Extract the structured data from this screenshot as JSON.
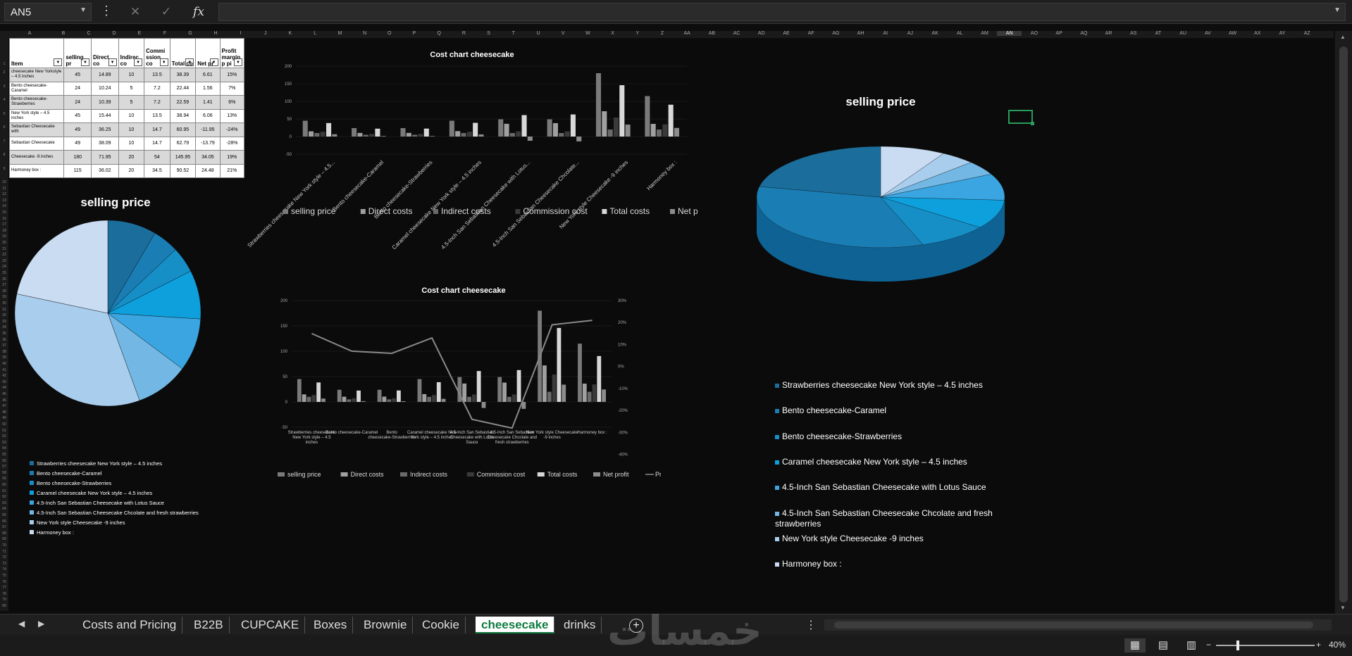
{
  "formula_bar": {
    "name_box": "AN5",
    "cancel_icon": "close-icon",
    "enter_icon": "check-icon",
    "function_label": "fx",
    "formula": ""
  },
  "columns": [
    "A",
    "B",
    "C",
    "D",
    "E",
    "F",
    "G",
    "H",
    "I",
    "J",
    "K",
    "L",
    "M",
    "N",
    "O",
    "P",
    "Q",
    "R",
    "S",
    "T",
    "U",
    "V",
    "W",
    "X",
    "Y",
    "Z",
    "AA",
    "AB",
    "AC",
    "AD",
    "AE",
    "AF",
    "AG",
    "AH",
    "AI",
    "AJ",
    "AK",
    "AL",
    "AM",
    "AN",
    "AO",
    "AP",
    "AQ",
    "AR",
    "AS",
    "AT",
    "AU",
    "AV",
    "AW",
    "AX",
    "AY",
    "AZ"
  ],
  "active_column": "AN",
  "table": {
    "headers": [
      "Item",
      "selling pr",
      "Direct co",
      "Indirec co",
      "Commi ssion co",
      "Total co",
      "Net pr",
      "Profit margin p pi"
    ],
    "rows": [
      [
        "cheesecake New Yorkstyle – 4.5 inches",
        "45",
        "14.89",
        "10",
        "13.5",
        "38.39",
        "6.61",
        "15%"
      ],
      [
        "Bento cheesecake-Caramel",
        "24",
        "10.24",
        "5",
        "7.2",
        "22.44",
        "1.56",
        "7%"
      ],
      [
        "Bento cheesecake-Strawberries",
        "24",
        "10.39",
        "5",
        "7.2",
        "22.59",
        "1.41",
        "6%"
      ],
      [
        "New York style – 4.5 inches",
        "45",
        "15.44",
        "10",
        "13.5",
        "38.94",
        "6.06",
        "13%"
      ],
      [
        "Sebastian Cheesecake with",
        "49",
        "36.25",
        "10",
        "14.7",
        "60.95",
        "-11.95",
        "-24%"
      ],
      [
        "Sebastian Cheesecake",
        "49",
        "38.09",
        "10",
        "14.7",
        "62.79",
        "-13.79",
        "-28%"
      ],
      [
        "Cheesecake -9 inches",
        "180",
        "71.95",
        "20",
        "54",
        "145.95",
        "34.05",
        "19%"
      ],
      [
        "Harmoney box :",
        "115",
        "36.02",
        "20",
        "34.5",
        "90.52",
        "24.48",
        "21%"
      ]
    ]
  },
  "chart_data": [
    {
      "type": "bar",
      "title": "Cost chart cheesecake",
      "categories": [
        "Strawberries cheesecake New York style – 4.5...",
        "Bento cheesecake-Caramel",
        "Bento cheesecake-Strawberries",
        "Caramel cheesecake New York style – 4.5 inches",
        "4.5-Inch San Sebastian Cheesecake with Lotus...",
        "4.5-Inch San Sebastian Cheesecake Chcolate...",
        "New York style Cheesecake -9 inches",
        "Harmoney box :"
      ],
      "ylim": [
        -50,
        200
      ],
      "yticks": [
        "200",
        "150",
        "100",
        "50",
        "0",
        "-50"
      ],
      "series": [
        {
          "name": "selling price",
          "values": [
            45,
            24,
            24,
            45,
            49,
            49,
            180,
            115
          ],
          "color": "#7a7a7a"
        },
        {
          "name": "Direct costs",
          "values": [
            14.89,
            10.24,
            10.39,
            15.44,
            36.25,
            38.09,
            71.95,
            36.02
          ],
          "color": "#a0a0a0"
        },
        {
          "name": "Indirect costs",
          "values": [
            10,
            5,
            5,
            10,
            10,
            10,
            20,
            20
          ],
          "color": "#6a6a6a"
        },
        {
          "name": "Commission cost",
          "values": [
            13.5,
            7.2,
            7.2,
            13.5,
            14.7,
            14.7,
            54,
            34.5
          ],
          "color": "#3a3a3a"
        },
        {
          "name": "Total costs",
          "values": [
            38.39,
            22.44,
            22.59,
            38.94,
            60.95,
            62.79,
            145.95,
            90.52
          ],
          "color": "#d8d8d8"
        },
        {
          "name": "Net profit",
          "values": [
            6.61,
            1.56,
            1.41,
            6.06,
            -11.95,
            -13.79,
            34.05,
            24.48
          ],
          "color": "#8c8c8c"
        }
      ]
    },
    {
      "type": "bar",
      "title": "Cost chart cheesecake",
      "categories": [
        "Strawberries cheesecake New York style – 4.5 inches",
        "Bento cheesecake-Caramel",
        "Bento cheesecake-Strawberries",
        "Caramel cheesecake New York style – 4.5 inches",
        "4.5-Inch San Sebastian Cheesecake with Lotus Sauce",
        "4.5-Inch San Sebastian Cheesecake Chcolate and fresh strawberries",
        "New York style Cheesecake -9 inches",
        "Harmoney box :"
      ],
      "ylim": [
        -50,
        200
      ],
      "yticks": [
        "200",
        "150",
        "100",
        "50",
        "0",
        "-50"
      ],
      "y2ticks": [
        "30%",
        "20%",
        "10%",
        "0%",
        "-10%",
        "-20%",
        "-30%",
        "-40%"
      ],
      "y2lim": [
        -0.4,
        0.3
      ],
      "series": [
        {
          "name": "selling price",
          "values": [
            45,
            24,
            24,
            45,
            49,
            49,
            180,
            115
          ],
          "color": "#7a7a7a"
        },
        {
          "name": "Direct costs",
          "values": [
            14.89,
            10.24,
            10.39,
            15.44,
            36.25,
            38.09,
            71.95,
            36.02
          ],
          "color": "#a0a0a0"
        },
        {
          "name": "Indirect costs",
          "values": [
            10,
            5,
            5,
            10,
            10,
            10,
            20,
            20
          ],
          "color": "#6a6a6a"
        },
        {
          "name": "Commission cost",
          "values": [
            13.5,
            7.2,
            7.2,
            13.5,
            14.7,
            14.7,
            54,
            34.5
          ],
          "color": "#3a3a3a"
        },
        {
          "name": "Total costs",
          "values": [
            38.39,
            22.44,
            22.59,
            38.94,
            60.95,
            62.79,
            145.95,
            90.52
          ],
          "color": "#d8d8d8"
        },
        {
          "name": "Net profit",
          "values": [
            6.61,
            1.56,
            1.41,
            6.06,
            -11.95,
            -13.79,
            34.05,
            24.48
          ],
          "color": "#8c8c8c"
        }
      ],
      "line": {
        "name": "Profit margin per piece",
        "values": [
          0.15,
          0.07,
          0.06,
          0.13,
          -0.24,
          -0.28,
          0.19,
          0.21
        ],
        "color": "#8a8a8a"
      }
    },
    {
      "type": "pie",
      "title": "selling price",
      "labels": [
        "Strawberries cheesecake New York style – 4.5 inches",
        "Bento cheesecake-Caramel",
        "Bento cheesecake-Strawberries",
        "Caramel cheesecake New York style – 4.5 inches",
        "4.5-Inch San Sebastian Cheesecake with Lotus Sauce",
        "4.5-Inch San Sebastian Cheesecake Chcolate and fresh strawberries",
        "New York style Cheesecake  -9 inches",
        "Harmoney box :"
      ],
      "values": [
        45,
        24,
        24,
        45,
        49,
        49,
        180,
        115
      ],
      "colors": [
        "#1b6e9c",
        "#1a7db3",
        "#168fc7",
        "#0ea0dc",
        "#3aa5e0",
        "#73b8e4",
        "#a9cdec",
        "#c9dcf2"
      ]
    },
    {
      "type": "pie",
      "title": "selling price",
      "style": "3d",
      "labels": [
        "Strawberries cheesecake New York style – 4.5 inches",
        "Bento cheesecake-Caramel",
        "Bento cheesecake-Strawberries",
        "Caramel cheesecake New York style – 4.5 inches",
        "4.5-Inch San Sebastian Cheesecake with Lotus Sauce",
        "4.5-Inch San Sebastian Cheesecake Chcolate and fresh strawberries",
        "New York style Cheesecake  -9 inches",
        "Harmoney box :"
      ],
      "values": [
        45,
        24,
        24,
        45,
        49,
        49,
        180,
        115
      ],
      "colors": [
        "#c9dcf2",
        "#a9cdec",
        "#73b8e4",
        "#3aa5e0",
        "#0ea0dc",
        "#168fc7",
        "#1a7db3",
        "#1b6e9c"
      ]
    }
  ],
  "sheet_tabs": [
    "Costs and Pricing",
    "B22B",
    "CUPCAKE",
    "Boxes",
    "Brownie",
    "Cookie",
    "cheesecake",
    "drinks"
  ],
  "active_tab": "cheesecake",
  "add_sheet_label": "+",
  "watermark": "خمسات",
  "status": {
    "zoom": "40%",
    "zoom_out": "−",
    "zoom_in": "+"
  }
}
